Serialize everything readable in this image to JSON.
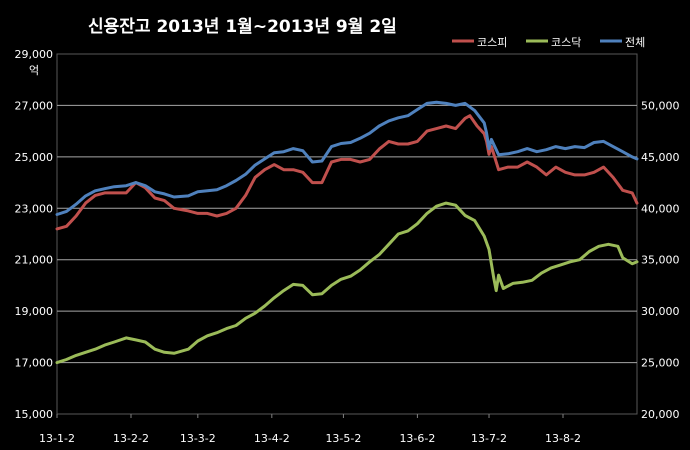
{
  "chart_data": {
    "type": "line",
    "title": "신용잔고 2013년 1월~2013년 9월 2일",
    "y_left_unit": "억",
    "y_left_lim": [
      15000,
      29000
    ],
    "y_left_ticks": [
      "15,000",
      "17,000",
      "19,000",
      "21,000",
      "23,000",
      "25,000",
      "27,000",
      "29,000"
    ],
    "y_right_lim": [
      20000,
      55000
    ],
    "y_right_ticks": [
      "20,000",
      "25,000",
      "30,000",
      "35,000",
      "40,000",
      "45,000",
      "50,000"
    ],
    "x_ticks": [
      "13-1-2",
      "13-2-2",
      "13-3-2",
      "13-4-2",
      "13-5-2",
      "13-6-2",
      "13-7-2",
      "13-8-2"
    ],
    "x_domain": [
      "2013-01-02",
      "2013-09-02"
    ],
    "grid": true,
    "legend_position": "top-right",
    "series": [
      {
        "name": "코스피",
        "axis": "left",
        "color": "#c0504d",
        "points": [
          [
            "2013-01-02",
            22200
          ],
          [
            "2013-01-06",
            22300
          ],
          [
            "2013-01-10",
            22700
          ],
          [
            "2013-01-14",
            23200
          ],
          [
            "2013-01-18",
            23500
          ],
          [
            "2013-01-22",
            23600
          ],
          [
            "2013-01-26",
            23600
          ],
          [
            "2013-01-31",
            23600
          ],
          [
            "2013-02-04",
            24000
          ],
          [
            "2013-02-08",
            23800
          ],
          [
            "2013-02-12",
            23400
          ],
          [
            "2013-02-16",
            23300
          ],
          [
            "2013-02-20",
            23000
          ],
          [
            "2013-02-26",
            22900
          ],
          [
            "2013-03-02",
            22800
          ],
          [
            "2013-03-06",
            22800
          ],
          [
            "2013-03-10",
            22700
          ],
          [
            "2013-03-14",
            22800
          ],
          [
            "2013-03-18",
            23000
          ],
          [
            "2013-03-22",
            23500
          ],
          [
            "2013-03-26",
            24200
          ],
          [
            "2013-03-30",
            24500
          ],
          [
            "2013-04-03",
            24700
          ],
          [
            "2013-04-07",
            24500
          ],
          [
            "2013-04-11",
            24500
          ],
          [
            "2013-04-15",
            24400
          ],
          [
            "2013-04-19",
            24000
          ],
          [
            "2013-04-23",
            24000
          ],
          [
            "2013-04-27",
            24800
          ],
          [
            "2013-05-01",
            24900
          ],
          [
            "2013-05-05",
            24900
          ],
          [
            "2013-05-09",
            24800
          ],
          [
            "2013-05-13",
            24900
          ],
          [
            "2013-05-17",
            25300
          ],
          [
            "2013-05-21",
            25600
          ],
          [
            "2013-05-25",
            25500
          ],
          [
            "2013-05-29",
            25500
          ],
          [
            "2013-06-02",
            25600
          ],
          [
            "2013-06-06",
            26000
          ],
          [
            "2013-06-10",
            26100
          ],
          [
            "2013-06-14",
            26200
          ],
          [
            "2013-06-18",
            26100
          ],
          [
            "2013-06-22",
            26500
          ],
          [
            "2013-06-24",
            26600
          ],
          [
            "2013-06-27",
            26200
          ],
          [
            "2013-06-30",
            25900
          ],
          [
            "2013-07-01",
            25600
          ],
          [
            "2013-07-02",
            25100
          ],
          [
            "2013-07-03",
            25400
          ],
          [
            "2013-07-06",
            24500
          ],
          [
            "2013-07-10",
            24600
          ],
          [
            "2013-07-14",
            24600
          ],
          [
            "2013-07-18",
            24800
          ],
          [
            "2013-07-22",
            24600
          ],
          [
            "2013-07-26",
            24300
          ],
          [
            "2013-07-30",
            24600
          ],
          [
            "2013-08-03",
            24400
          ],
          [
            "2013-08-07",
            24300
          ],
          [
            "2013-08-11",
            24300
          ],
          [
            "2013-08-15",
            24400
          ],
          [
            "2013-08-19",
            24600
          ],
          [
            "2013-08-23",
            24200
          ],
          [
            "2013-08-27",
            23700
          ],
          [
            "2013-08-31",
            23600
          ],
          [
            "2013-09-02",
            23200
          ]
        ]
      },
      {
        "name": "코스닥",
        "axis": "right",
        "color": "#9bbb59",
        "points": [
          [
            "2013-01-02",
            25000
          ],
          [
            "2013-01-06",
            25300
          ],
          [
            "2013-01-10",
            25700
          ],
          [
            "2013-01-14",
            26000
          ],
          [
            "2013-01-18",
            26300
          ],
          [
            "2013-01-22",
            26700
          ],
          [
            "2013-01-26",
            27000
          ],
          [
            "2013-01-31",
            27400
          ],
          [
            "2013-02-04",
            27200
          ],
          [
            "2013-02-08",
            27000
          ],
          [
            "2013-02-12",
            26300
          ],
          [
            "2013-02-16",
            26000
          ],
          [
            "2013-02-20",
            25900
          ],
          [
            "2013-02-26",
            26300
          ],
          [
            "2013-03-02",
            27100
          ],
          [
            "2013-03-06",
            27600
          ],
          [
            "2013-03-10",
            27900
          ],
          [
            "2013-03-14",
            28300
          ],
          [
            "2013-03-18",
            28600
          ],
          [
            "2013-03-22",
            29300
          ],
          [
            "2013-03-26",
            29800
          ],
          [
            "2013-03-30",
            30500
          ],
          [
            "2013-04-03",
            31300
          ],
          [
            "2013-04-07",
            32000
          ],
          [
            "2013-04-11",
            32600
          ],
          [
            "2013-04-15",
            32500
          ],
          [
            "2013-04-19",
            31600
          ],
          [
            "2013-04-23",
            31700
          ],
          [
            "2013-04-27",
            32500
          ],
          [
            "2013-05-01",
            33100
          ],
          [
            "2013-05-05",
            33400
          ],
          [
            "2013-05-09",
            34000
          ],
          [
            "2013-05-13",
            34800
          ],
          [
            "2013-05-17",
            35500
          ],
          [
            "2013-05-21",
            36500
          ],
          [
            "2013-05-25",
            37500
          ],
          [
            "2013-05-29",
            37800
          ],
          [
            "2013-06-02",
            38500
          ],
          [
            "2013-06-06",
            39500
          ],
          [
            "2013-06-10",
            40200
          ],
          [
            "2013-06-14",
            40500
          ],
          [
            "2013-06-18",
            40300
          ],
          [
            "2013-06-22",
            39300
          ],
          [
            "2013-06-26",
            38800
          ],
          [
            "2013-06-30",
            37300
          ],
          [
            "2013-07-02",
            36000
          ],
          [
            "2013-07-04",
            33200
          ],
          [
            "2013-07-05",
            32000
          ],
          [
            "2013-07-06",
            33500
          ],
          [
            "2013-07-08",
            32200
          ],
          [
            "2013-07-12",
            32700
          ],
          [
            "2013-07-16",
            32800
          ],
          [
            "2013-07-20",
            33000
          ],
          [
            "2013-07-24",
            33700
          ],
          [
            "2013-07-28",
            34200
          ],
          [
            "2013-08-01",
            34500
          ],
          [
            "2013-08-05",
            34800
          ],
          [
            "2013-08-09",
            35000
          ],
          [
            "2013-08-13",
            35800
          ],
          [
            "2013-08-17",
            36300
          ],
          [
            "2013-08-21",
            36500
          ],
          [
            "2013-08-25",
            36300
          ],
          [
            "2013-08-27",
            35200
          ],
          [
            "2013-08-31",
            34600
          ],
          [
            "2013-09-02",
            34800
          ]
        ]
      },
      {
        "name": "전체",
        "axis": "right",
        "color": "#4f81bd",
        "points": [
          [
            "2013-01-02",
            39400
          ],
          [
            "2013-01-06",
            39700
          ],
          [
            "2013-01-10",
            40400
          ],
          [
            "2013-01-14",
            41200
          ],
          [
            "2013-01-18",
            41700
          ],
          [
            "2013-01-22",
            41900
          ],
          [
            "2013-01-26",
            42100
          ],
          [
            "2013-01-31",
            42200
          ],
          [
            "2013-02-04",
            42500
          ],
          [
            "2013-02-08",
            42200
          ],
          [
            "2013-02-12",
            41600
          ],
          [
            "2013-02-16",
            41400
          ],
          [
            "2013-02-20",
            41100
          ],
          [
            "2013-02-26",
            41200
          ],
          [
            "2013-03-02",
            41600
          ],
          [
            "2013-03-06",
            41700
          ],
          [
            "2013-03-10",
            41800
          ],
          [
            "2013-03-14",
            42200
          ],
          [
            "2013-03-18",
            42700
          ],
          [
            "2013-03-22",
            43300
          ],
          [
            "2013-03-26",
            44200
          ],
          [
            "2013-03-30",
            44800
          ],
          [
            "2013-04-03",
            45400
          ],
          [
            "2013-04-07",
            45500
          ],
          [
            "2013-04-11",
            45800
          ],
          [
            "2013-04-15",
            45600
          ],
          [
            "2013-04-19",
            44500
          ],
          [
            "2013-04-23",
            44600
          ],
          [
            "2013-04-27",
            46000
          ],
          [
            "2013-05-01",
            46300
          ],
          [
            "2013-05-05",
            46400
          ],
          [
            "2013-05-09",
            46800
          ],
          [
            "2013-05-13",
            47300
          ],
          [
            "2013-05-17",
            48000
          ],
          [
            "2013-05-21",
            48500
          ],
          [
            "2013-05-25",
            48800
          ],
          [
            "2013-05-29",
            49000
          ],
          [
            "2013-06-02",
            49600
          ],
          [
            "2013-06-06",
            50200
          ],
          [
            "2013-06-10",
            50300
          ],
          [
            "2013-06-14",
            50200
          ],
          [
            "2013-06-18",
            50000
          ],
          [
            "2013-06-22",
            50200
          ],
          [
            "2013-06-26",
            49500
          ],
          [
            "2013-06-30",
            48300
          ],
          [
            "2013-07-01",
            47300
          ],
          [
            "2013-07-02",
            45800
          ],
          [
            "2013-07-03",
            46700
          ],
          [
            "2013-07-06",
            45200
          ],
          [
            "2013-07-10",
            45300
          ],
          [
            "2013-07-14",
            45500
          ],
          [
            "2013-07-18",
            45800
          ],
          [
            "2013-07-22",
            45500
          ],
          [
            "2013-07-26",
            45700
          ],
          [
            "2013-07-30",
            46000
          ],
          [
            "2013-08-03",
            45800
          ],
          [
            "2013-08-07",
            46000
          ],
          [
            "2013-08-11",
            45900
          ],
          [
            "2013-08-15",
            46400
          ],
          [
            "2013-08-19",
            46500
          ],
          [
            "2013-08-23",
            46000
          ],
          [
            "2013-08-27",
            45500
          ],
          [
            "2013-08-31",
            45000
          ],
          [
            "2013-09-02",
            44800
          ]
        ]
      }
    ]
  }
}
